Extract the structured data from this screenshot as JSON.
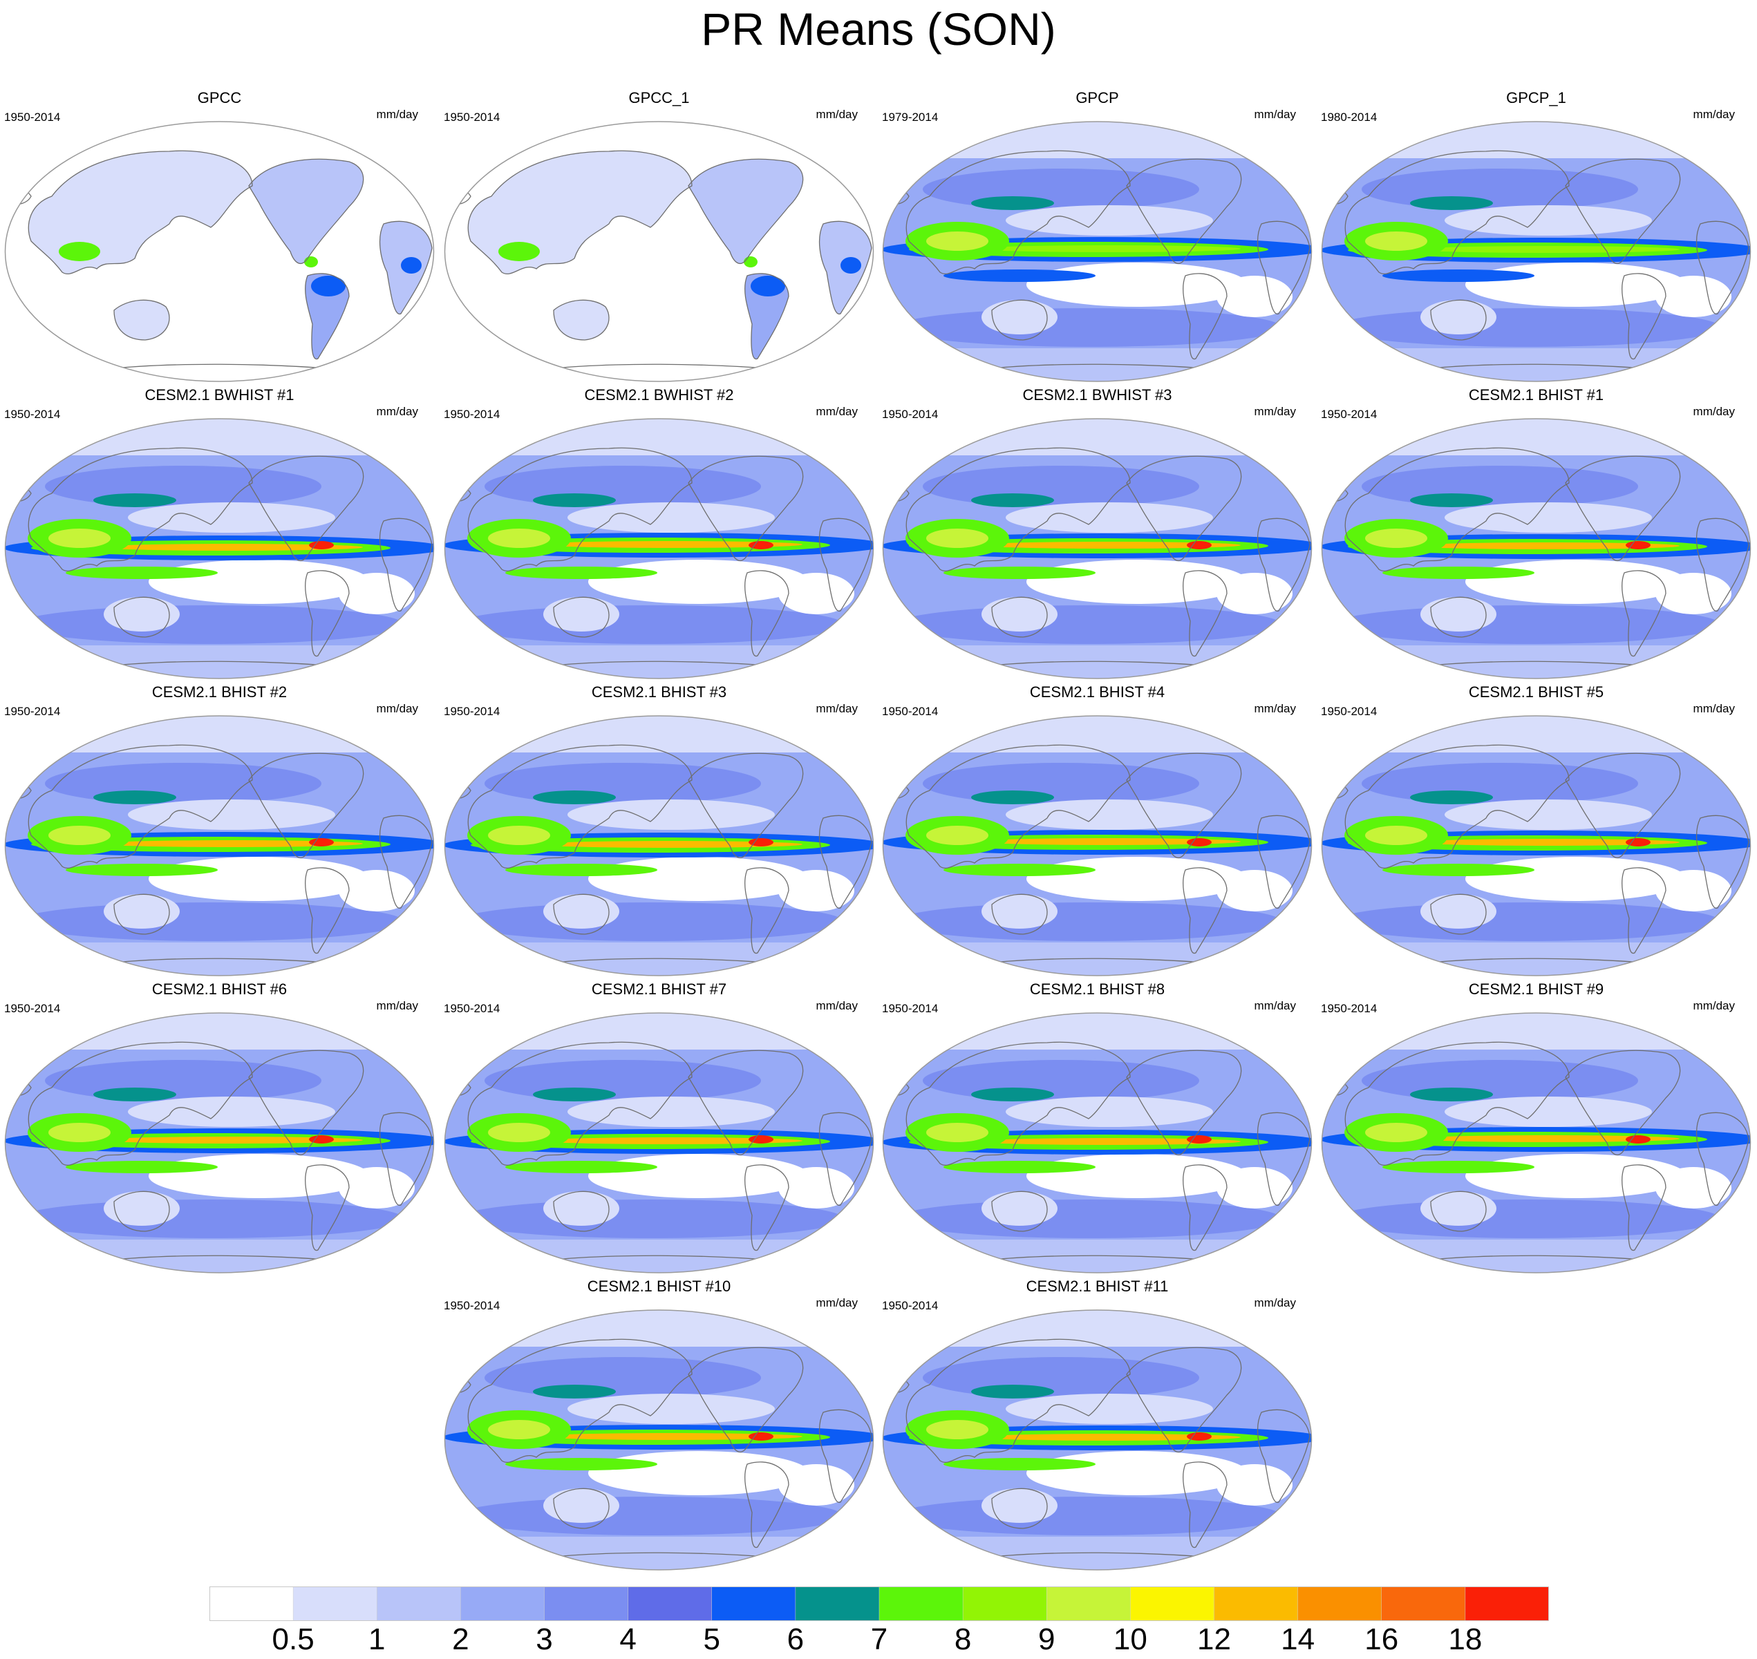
{
  "title": "PR Means (SON)",
  "units": "mm/day",
  "panels": [
    {
      "title": "GPCC",
      "period": "1950-2014",
      "units": "mm/day",
      "type": "land"
    },
    {
      "title": "GPCC_1",
      "period": "1950-2014",
      "units": "mm/day",
      "type": "land"
    },
    {
      "title": "GPCP",
      "period": "1979-2014",
      "units": "mm/day",
      "type": "obs"
    },
    {
      "title": "GPCP_1",
      "period": "1980-2014",
      "units": "mm/day",
      "type": "obs"
    },
    {
      "title": "CESM2.1 BWHIST #1",
      "period": "1950-2014",
      "units": "mm/day",
      "type": "model"
    },
    {
      "title": "CESM2.1 BWHIST #2",
      "period": "1950-2014",
      "units": "mm/day",
      "type": "model"
    },
    {
      "title": "CESM2.1 BWHIST #3",
      "period": "1950-2014",
      "units": "mm/day",
      "type": "model"
    },
    {
      "title": "CESM2.1 BHIST #1",
      "period": "1950-2014",
      "units": "mm/day",
      "type": "model"
    },
    {
      "title": "CESM2.1 BHIST #2",
      "period": "1950-2014",
      "units": "mm/day",
      "type": "model"
    },
    {
      "title": "CESM2.1 BHIST #3",
      "period": "1950-2014",
      "units": "mm/day",
      "type": "model"
    },
    {
      "title": "CESM2.1 BHIST #4",
      "period": "1950-2014",
      "units": "mm/day",
      "type": "model"
    },
    {
      "title": "CESM2.1 BHIST #5",
      "period": "1950-2014",
      "units": "mm/day",
      "type": "model"
    },
    {
      "title": "CESM2.1 BHIST #6",
      "period": "1950-2014",
      "units": "mm/day",
      "type": "model"
    },
    {
      "title": "CESM2.1 BHIST #7",
      "period": "1950-2014",
      "units": "mm/day",
      "type": "model"
    },
    {
      "title": "CESM2.1 BHIST #8",
      "period": "1950-2014",
      "units": "mm/day",
      "type": "model"
    },
    {
      "title": "CESM2.1 BHIST #9",
      "period": "1950-2014",
      "units": "mm/day",
      "type": "model"
    },
    {
      "title": "CESM2.1 BHIST #10",
      "period": "1950-2014",
      "units": "mm/day",
      "type": "model"
    },
    {
      "title": "CESM2.1 BHIST #11",
      "period": "1950-2014",
      "units": "mm/day",
      "type": "model"
    }
  ],
  "colorbar": {
    "levels": [
      "0.5",
      "1",
      "2",
      "3",
      "4",
      "5",
      "6",
      "7",
      "8",
      "9",
      "10",
      "12",
      "14",
      "16",
      "18"
    ],
    "colors": [
      "#ffffff",
      "#d8defb",
      "#b8c4f9",
      "#97aaf6",
      "#7b8ef1",
      "#5f6ce8",
      "#0c5cf5",
      "#05928c",
      "#5cf50a",
      "#92f405",
      "#c6f438",
      "#fbf500",
      "#fbbb00",
      "#fa9000",
      "#f9680c",
      "#fa2007"
    ]
  },
  "colors": {
    "coastline": "#6e6e6e",
    "border": "#9a9a9a"
  }
}
